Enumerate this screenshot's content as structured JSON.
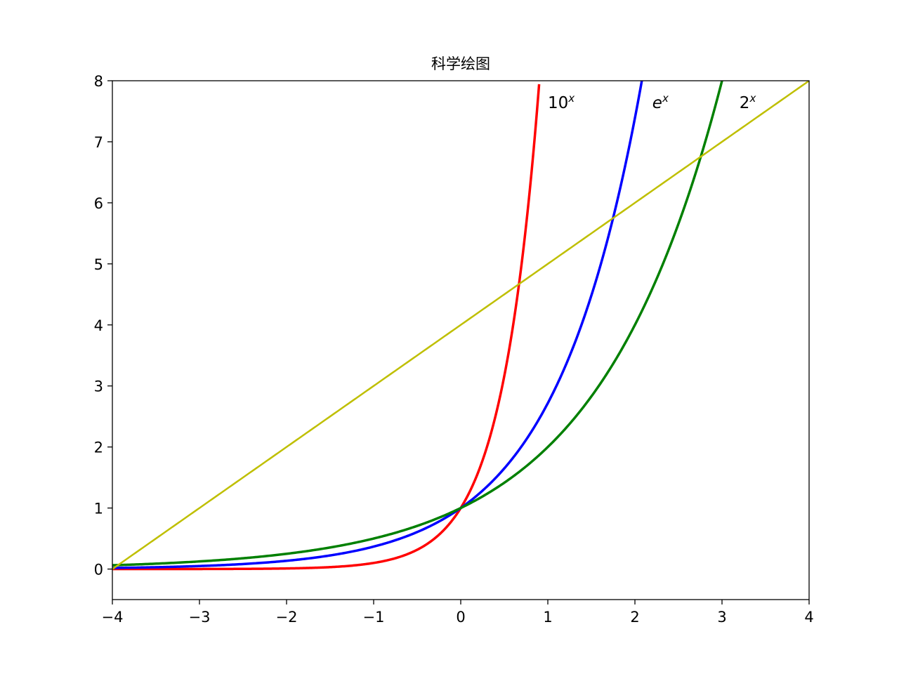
{
  "chart_data": {
    "type": "line",
    "title": "科学绘图",
    "xlabel": "",
    "ylabel": "",
    "xlim": [
      -4,
      4
    ],
    "ylim": [
      -0.5,
      8
    ],
    "xticks": [
      -4,
      -3,
      -2,
      -1,
      0,
      1,
      2,
      3,
      4
    ],
    "xtick_labels": [
      "−4",
      "−3",
      "−2",
      "−1",
      "0",
      "1",
      "2",
      "3",
      "4"
    ],
    "yticks": [
      0,
      1,
      2,
      3,
      4,
      5,
      6,
      7,
      8
    ],
    "ytick_labels": [
      "0",
      "1",
      "2",
      "3",
      "4",
      "5",
      "6",
      "7",
      "8"
    ],
    "grid": false,
    "legend": "none",
    "series": [
      {
        "function": "10^x",
        "color": "#ff0000",
        "x": [
          -4,
          -3,
          -2,
          -1,
          -0.5,
          -0.25,
          0,
          0.25,
          0.5,
          0.75,
          0.9
        ],
        "y": [
          0.0001,
          0.001,
          0.01,
          0.1,
          0.316,
          0.562,
          1,
          1.778,
          3.162,
          5.623,
          7.943
        ]
      },
      {
        "function": "e^x",
        "color": "#0000ff",
        "x": [
          -4,
          -3,
          -2,
          -1,
          0,
          0.5,
          1,
          1.5,
          2,
          2.08
        ],
        "y": [
          0.018,
          0.05,
          0.135,
          0.368,
          1,
          1.649,
          2.718,
          4.482,
          7.389,
          8.0
        ]
      },
      {
        "function": "2^x",
        "color": "#008000",
        "x": [
          -4,
          -3,
          -2,
          -1,
          0,
          1,
          2,
          2.5,
          3
        ],
        "y": [
          0.0625,
          0.125,
          0.25,
          0.5,
          1,
          2,
          4,
          5.657,
          8
        ]
      },
      {
        "function": "y = x + 4",
        "color": "#bfbf00",
        "x": [
          -4,
          4
        ],
        "y": [
          0,
          8
        ]
      }
    ],
    "annotations": [
      {
        "base": "10",
        "sup": "x",
        "italic_base": false,
        "x": 1.0,
        "y": 7.55
      },
      {
        "base": "e",
        "sup": "x",
        "italic_base": true,
        "x": 2.2,
        "y": 7.55
      },
      {
        "base": "2",
        "sup": "x",
        "italic_base": false,
        "x": 3.2,
        "y": 7.55
      }
    ]
  }
}
